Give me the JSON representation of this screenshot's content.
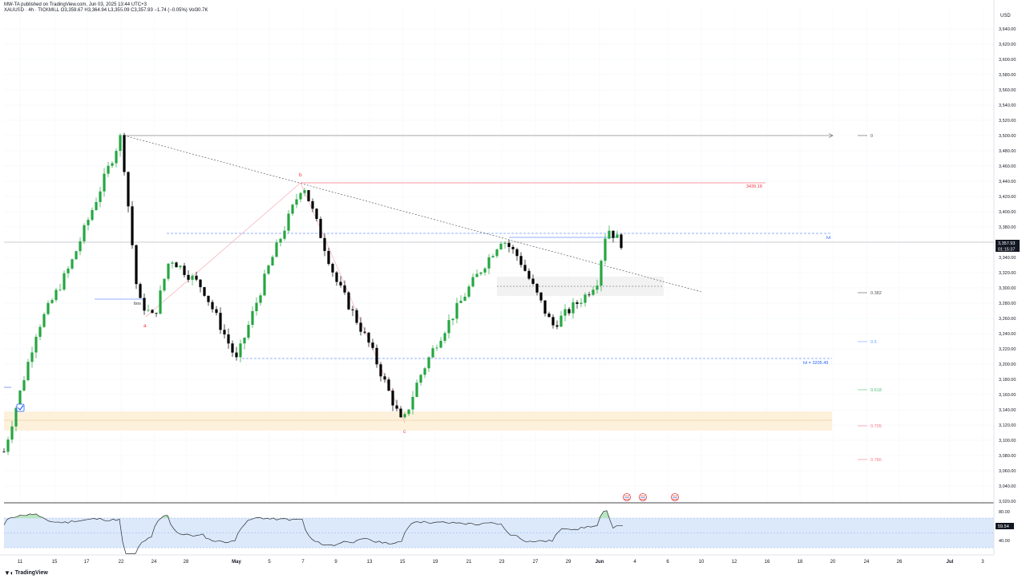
{
  "header": {
    "publisher_line": "MW-TA published on TradingView.com, Jun 03, 2025 13:44 UTC+3",
    "symbol_line": "XAUUSD · 4h · TICKMILL  O3,359.67  H3,364.94  L3,355.09  C3,357.93  −1.74 (−0.05%)  Vol30.7K"
  },
  "footer": {
    "brand": "TradingView",
    "logo": "tradingview-logo"
  },
  "price_axis": {
    "currency": "USD",
    "ticks": [
      "3,640.00",
      "3,620.00",
      "3,600.00",
      "3,580.00",
      "3,560.00",
      "3,540.00",
      "3,520.00",
      "3,500.00",
      "3,480.00",
      "3,460.00",
      "3,440.00",
      "3,420.00",
      "3,400.00",
      "3,380.00",
      "3,360.00",
      "3,340.00",
      "3,320.00",
      "3,300.00",
      "3,280.00",
      "3,260.00",
      "3,240.00",
      "3,220.00",
      "3,200.00",
      "3,180.00",
      "3,160.00",
      "3,140.00",
      "3,120.00",
      "3,100.00",
      "3,080.00",
      "3,060.00",
      "3,040.00",
      "3,020.00"
    ],
    "last_price": "3,357.93",
    "countdown": "01:15:37"
  },
  "rsi_axis": {
    "ticks": [
      "80.00",
      "40.00"
    ],
    "value": "59.54"
  },
  "time_axis": {
    "labels": [
      "11",
      "15",
      "17",
      "22",
      "24",
      "28",
      "May",
      "5",
      "7",
      "9",
      "13",
      "15",
      "19",
      "21",
      "23",
      "27",
      "29",
      "Jun",
      "4",
      "6",
      "10",
      "12",
      "16",
      "18",
      "20",
      "24",
      "26",
      "Jul",
      "3"
    ]
  },
  "annotations": {
    "fib_0": "0",
    "fib_0382": "0.382",
    "fib_05": "0.5",
    "fib_0618": "0.618",
    "fib_0705": "0.705",
    "fib_0786": "0.786",
    "level_high": "3439.18",
    "lvl_upper": "lvl",
    "lvl_lower": "lvl = 3205.49",
    "wave_a": "a",
    "wave_b": "b",
    "wave_c": "c",
    "bos": "bos"
  },
  "colors": {
    "up": "#26a641",
    "down": "#000000",
    "rsi_band": "#dbe9fb",
    "zone": "#fdf1dc",
    "red": "#f23645",
    "blue": "#2962ff"
  },
  "chart_data": {
    "type": "candlestick",
    "symbol": "XAUUSD",
    "timeframe": "4h",
    "ylim": [
      3020,
      3650
    ],
    "ohlc_last": {
      "open": 3359.67,
      "high": 3364.94,
      "low": 3355.09,
      "close": 3357.93,
      "change": -1.74,
      "change_pct": -0.05,
      "volume": "30.7K"
    },
    "key_points": [
      {
        "x": "Apr 10",
        "price": 3085
      },
      {
        "x": "Apr 14",
        "price": 3245
      },
      {
        "x": "Apr 16",
        "price": 3330
      },
      {
        "x": "Apr 22",
        "price": 3500
      },
      {
        "x": "Apr 23",
        "price": 3285
      },
      {
        "x": "Apr 24",
        "price": 3260
      },
      {
        "x": "Apr 25",
        "price": 3340
      },
      {
        "x": "Apr 29",
        "price": 3300
      },
      {
        "x": "May 1",
        "price": 3205
      },
      {
        "x": "May 5",
        "price": 3330
      },
      {
        "x": "May 7",
        "price": 3438
      },
      {
        "x": "May 9",
        "price": 3310
      },
      {
        "x": "May 13",
        "price": 3225
      },
      {
        "x": "May 15",
        "price": 3120
      },
      {
        "x": "May 16",
        "price": 3180
      },
      {
        "x": "May 19",
        "price": 3225
      },
      {
        "x": "May 21",
        "price": 3300
      },
      {
        "x": "May 23",
        "price": 3365
      },
      {
        "x": "May 26",
        "price": 3340
      },
      {
        "x": "May 28",
        "price": 3250
      },
      {
        "x": "May 30",
        "price": 3290
      },
      {
        "x": "Jun 1",
        "price": 3310
      },
      {
        "x": "Jun 2",
        "price": 3380
      },
      {
        "x": "Jun 3",
        "price": 3358
      }
    ],
    "rsi": {
      "value": 59.54,
      "levels": [
        70,
        30
      ]
    }
  }
}
